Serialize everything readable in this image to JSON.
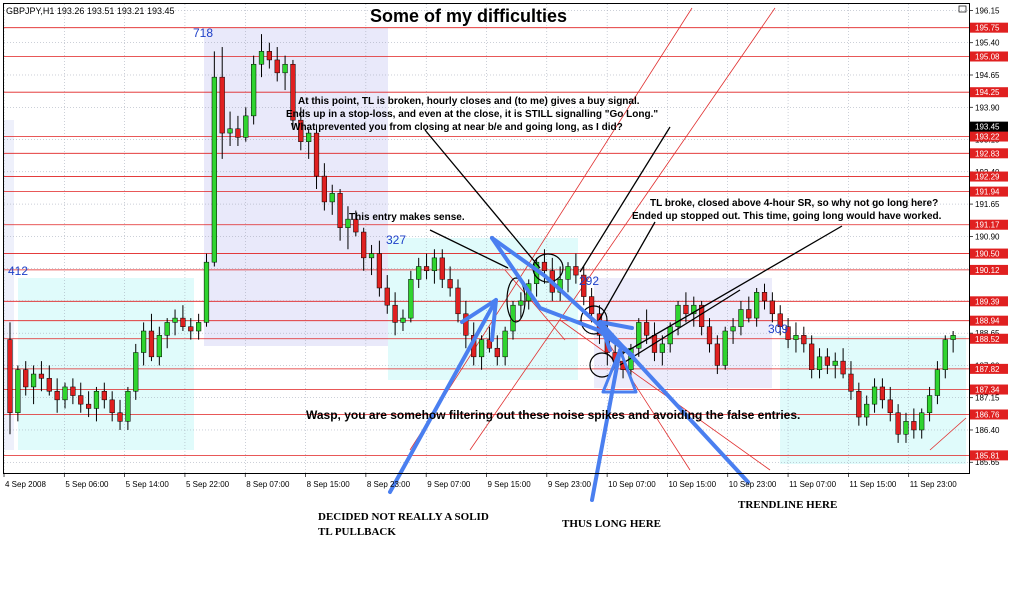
{
  "chart_data": {
    "type": "candlestick",
    "symbol_line": "GBPJPY,H1  193.26 193.51 193.21 193.45",
    "title": "Some of my difficulties",
    "y_range": [
      185.4,
      196.3
    ],
    "y_ticks": [
      "196.15",
      "195.40",
      "194.65",
      "193.90",
      "193.15",
      "192.40",
      "191.65",
      "190.90",
      "190.15",
      "189.40",
      "188.65",
      "187.90",
      "187.15",
      "186.40",
      "185.65"
    ],
    "level_lines": [
      "195.75",
      "195.08",
      "194.25",
      "193.22",
      "192.83",
      "192.29",
      "191.94",
      "191.17",
      "190.50",
      "190.12",
      "189.39",
      "188.94",
      "188.52",
      "187.82",
      "187.34",
      "186.76",
      "185.81"
    ],
    "current_price": "193.45",
    "x_labels": [
      "4 Sep 2008",
      "5 Sep 06:00",
      "5 Sep 14:00",
      "5 Sep 22:00",
      "8 Sep 07:00",
      "8 Sep 15:00",
      "8 Sep 23:00",
      "9 Sep 07:00",
      "9 Sep 15:00",
      "9 Sep 23:00",
      "10 Sep 07:00",
      "10 Sep 15:00",
      "10 Sep 23:00",
      "11 Sep 07:00",
      "11 Sep 15:00",
      "11 Sep 23:00"
    ],
    "wave_labels": [
      "718",
      "412",
      "327",
      "292",
      "309"
    ],
    "annotations": {
      "a1_line1": "At this point, TL is broken, hourly closes and (to me) gives a buy signal.",
      "a1_line2": "Ends up in a stop-loss, and even at the close, it is STILL signalling \"Go Long.\"",
      "a1_line3": "What prevented you from closing at near b/e and going long, as I did?",
      "a2": "This entry makes sense.",
      "a3_line1": "TL broke, closed above 4-hour SR, so why not go long here?",
      "a3_line2": "Ended up stopped out. This time, going long would have worked.",
      "a4": "Wasp, you are somehow filtering out these noise spikes and avoiding the false entries.",
      "b1_line1": "DECIDED NOT REALLY A SOLID",
      "b1_line2": "TL PULLBACK",
      "b2": "THUS LONG HERE",
      "b3": "TRENDLINE HERE"
    },
    "candles": [
      [
        188.5,
        188.9,
        186.3,
        186.8
      ],
      [
        186.8,
        187.9,
        186.6,
        187.8
      ],
      [
        187.8,
        188.0,
        187.2,
        187.4
      ],
      [
        187.4,
        187.9,
        187.0,
        187.7
      ],
      [
        187.7,
        188.0,
        187.3,
        187.6
      ],
      [
        187.6,
        187.9,
        187.2,
        187.3
      ],
      [
        187.3,
        187.6,
        186.8,
        187.1
      ],
      [
        187.1,
        187.5,
        186.9,
        187.4
      ],
      [
        187.4,
        187.6,
        187.0,
        187.2
      ],
      [
        187.2,
        187.5,
        186.8,
        187.0
      ],
      [
        187.0,
        187.3,
        186.7,
        186.9
      ],
      [
        186.9,
        187.4,
        186.6,
        187.3
      ],
      [
        187.3,
        187.5,
        186.9,
        187.1
      ],
      [
        187.1,
        187.3,
        186.6,
        186.8
      ],
      [
        186.8,
        187.1,
        186.4,
        186.6
      ],
      [
        186.6,
        187.4,
        186.4,
        187.3
      ],
      [
        187.3,
        188.4,
        187.1,
        188.2
      ],
      [
        188.2,
        188.9,
        187.9,
        188.7
      ],
      [
        188.7,
        189.1,
        188.0,
        188.1
      ],
      [
        188.1,
        188.8,
        187.9,
        188.6
      ],
      [
        188.6,
        189.0,
        188.3,
        188.9
      ],
      [
        188.9,
        189.2,
        188.6,
        189.0
      ],
      [
        189.0,
        189.3,
        188.7,
        188.8
      ],
      [
        188.8,
        189.0,
        188.5,
        188.7
      ],
      [
        188.7,
        189.1,
        188.5,
        188.9
      ],
      [
        188.9,
        190.5,
        188.8,
        190.3
      ],
      [
        190.3,
        195.2,
        190.2,
        194.6
      ],
      [
        194.6,
        195.3,
        192.7,
        193.3
      ],
      [
        193.3,
        193.8,
        193.0,
        193.4
      ],
      [
        193.4,
        193.7,
        193.0,
        193.2
      ],
      [
        193.2,
        193.9,
        193.1,
        193.7
      ],
      [
        193.7,
        195.1,
        193.5,
        194.9
      ],
      [
        194.9,
        195.6,
        194.6,
        195.2
      ],
      [
        195.2,
        195.4,
        194.8,
        195.0
      ],
      [
        195.0,
        195.3,
        194.5,
        194.7
      ],
      [
        194.7,
        195.1,
        194.3,
        194.9
      ],
      [
        194.9,
        195.0,
        193.4,
        193.6
      ],
      [
        193.6,
        193.9,
        192.9,
        193.1
      ],
      [
        193.1,
        193.4,
        192.7,
        193.3
      ],
      [
        193.3,
        193.5,
        192.0,
        192.3
      ],
      [
        192.3,
        192.6,
        191.5,
        191.7
      ],
      [
        191.7,
        192.1,
        191.4,
        191.9
      ],
      [
        191.9,
        192.0,
        190.8,
        191.1
      ],
      [
        191.1,
        191.6,
        190.6,
        191.3
      ],
      [
        191.3,
        191.5,
        190.9,
        191.0
      ],
      [
        191.0,
        191.1,
        190.1,
        190.4
      ],
      [
        190.4,
        190.7,
        190.0,
        190.5
      ],
      [
        190.5,
        190.8,
        189.5,
        189.7
      ],
      [
        189.7,
        190.0,
        189.1,
        189.3
      ],
      [
        189.3,
        189.6,
        188.6,
        188.9
      ],
      [
        188.9,
        189.2,
        188.7,
        189.0
      ],
      [
        189.0,
        190.1,
        188.9,
        189.9
      ],
      [
        189.9,
        190.4,
        189.7,
        190.2
      ],
      [
        190.2,
        190.5,
        189.9,
        190.1
      ],
      [
        190.1,
        190.6,
        189.8,
        190.4
      ],
      [
        190.4,
        190.6,
        189.7,
        189.9
      ],
      [
        189.9,
        190.2,
        189.5,
        189.7
      ],
      [
        189.7,
        189.9,
        188.9,
        189.1
      ],
      [
        189.1,
        189.4,
        188.3,
        188.6
      ],
      [
        188.6,
        188.9,
        187.9,
        188.1
      ],
      [
        188.1,
        188.6,
        187.8,
        188.5
      ],
      [
        188.5,
        188.8,
        188.2,
        188.3
      ],
      [
        188.3,
        188.6,
        187.9,
        188.1
      ],
      [
        188.1,
        188.8,
        187.9,
        188.7
      ],
      [
        188.7,
        189.4,
        188.5,
        189.3
      ],
      [
        189.3,
        189.6,
        189.0,
        189.4
      ],
      [
        189.4,
        189.9,
        189.2,
        189.8
      ],
      [
        189.8,
        190.4,
        189.5,
        190.3
      ],
      [
        190.3,
        190.6,
        189.8,
        190.1
      ],
      [
        190.1,
        190.4,
        189.4,
        189.6
      ],
      [
        189.6,
        190.2,
        189.4,
        189.9
      ],
      [
        189.9,
        190.3,
        189.6,
        190.2
      ],
      [
        190.2,
        190.5,
        189.8,
        190.0
      ],
      [
        190.0,
        190.2,
        189.3,
        189.5
      ],
      [
        189.5,
        189.7,
        188.9,
        189.1
      ],
      [
        189.1,
        189.3,
        188.4,
        188.6
      ],
      [
        188.6,
        188.9,
        187.9,
        188.2
      ],
      [
        188.2,
        188.4,
        187.7,
        188.0
      ],
      [
        188.0,
        188.3,
        187.6,
        187.8
      ],
      [
        187.8,
        188.4,
        187.6,
        188.3
      ],
      [
        188.3,
        189.0,
        188.1,
        188.9
      ],
      [
        188.9,
        189.2,
        188.4,
        188.6
      ],
      [
        188.6,
        188.9,
        188.0,
        188.2
      ],
      [
        188.2,
        188.6,
        187.9,
        188.4
      ],
      [
        188.4,
        188.9,
        188.2,
        188.8
      ],
      [
        188.8,
        189.4,
        188.6,
        189.3
      ],
      [
        189.3,
        189.6,
        188.9,
        189.1
      ],
      [
        189.1,
        189.5,
        188.8,
        189.3
      ],
      [
        189.3,
        189.4,
        188.6,
        188.8
      ],
      [
        188.8,
        189.0,
        188.2,
        188.4
      ],
      [
        188.4,
        188.6,
        187.7,
        187.9
      ],
      [
        187.9,
        188.8,
        187.8,
        188.7
      ],
      [
        188.7,
        189.0,
        188.4,
        188.8
      ],
      [
        188.8,
        189.4,
        188.6,
        189.2
      ],
      [
        189.2,
        189.5,
        188.9,
        189.0
      ],
      [
        189.0,
        189.7,
        188.8,
        189.6
      ],
      [
        189.6,
        189.8,
        189.2,
        189.4
      ],
      [
        189.4,
        189.6,
        188.9,
        189.1
      ],
      [
        189.1,
        189.3,
        188.6,
        188.8
      ],
      [
        188.8,
        189.0,
        188.3,
        188.5
      ],
      [
        188.5,
        188.9,
        188.2,
        188.6
      ],
      [
        188.6,
        188.8,
        188.2,
        188.4
      ],
      [
        188.4,
        188.6,
        187.6,
        187.8
      ],
      [
        187.8,
        188.3,
        187.6,
        188.1
      ],
      [
        188.1,
        188.3,
        187.7,
        187.9
      ],
      [
        187.9,
        188.2,
        187.6,
        188.0
      ],
      [
        188.0,
        188.3,
        187.6,
        187.7
      ],
      [
        187.7,
        188.0,
        187.1,
        187.3
      ],
      [
        187.3,
        187.5,
        186.5,
        186.7
      ],
      [
        186.7,
        187.2,
        186.5,
        187.0
      ],
      [
        187.0,
        187.6,
        186.8,
        187.4
      ],
      [
        187.4,
        187.6,
        186.9,
        187.1
      ],
      [
        187.1,
        187.4,
        186.6,
        186.8
      ],
      [
        186.8,
        187.0,
        186.1,
        186.3
      ],
      [
        186.3,
        186.8,
        186.1,
        186.6
      ],
      [
        186.6,
        186.9,
        186.2,
        186.4
      ],
      [
        186.4,
        186.9,
        186.2,
        186.8
      ],
      [
        186.8,
        187.4,
        186.6,
        187.2
      ],
      [
        187.2,
        188.0,
        187.0,
        187.8
      ],
      [
        187.8,
        188.6,
        187.6,
        188.5
      ],
      [
        188.5,
        188.7,
        188.2,
        188.6
      ]
    ]
  }
}
